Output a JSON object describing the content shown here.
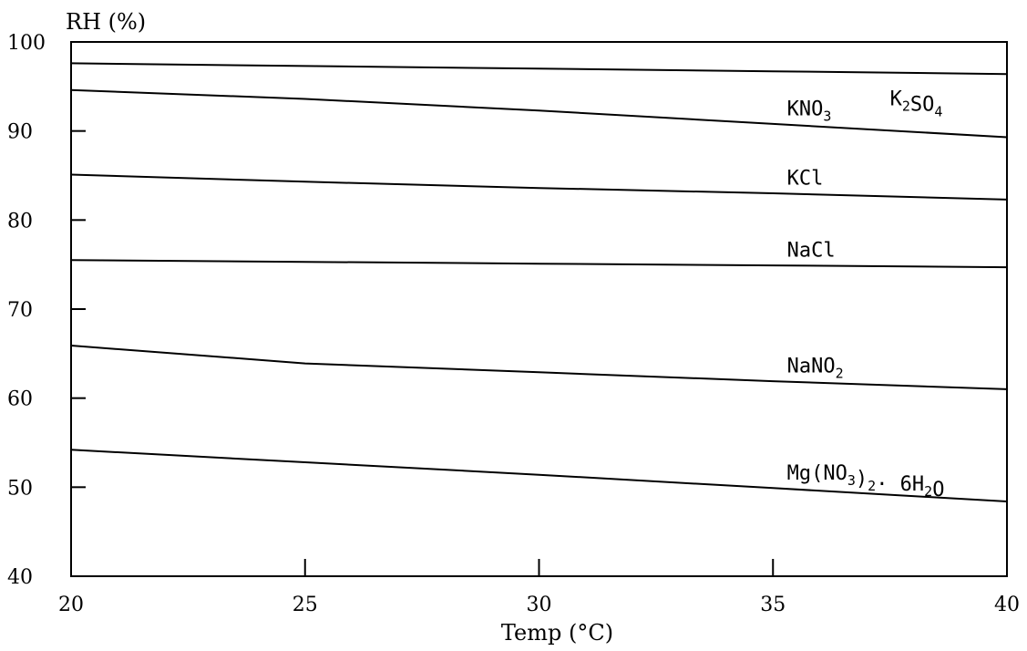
{
  "chart_data": {
    "type": "line",
    "title": "",
    "xlabel": "Temp (°C)",
    "ylabel": "RH (%)",
    "xlim": [
      20,
      40
    ],
    "ylim": [
      40,
      100
    ],
    "x_ticks": [
      20,
      25,
      30,
      35,
      40
    ],
    "y_ticks": [
      40,
      50,
      60,
      70,
      80,
      90,
      100
    ],
    "grid": false,
    "legend": "none",
    "series": [
      {
        "name": "K2SO4",
        "label_main": "K",
        "label_parts": [
          [
            "K",
            ""
          ],
          [
            "2",
            "sub"
          ],
          [
            "SO",
            ""
          ],
          [
            "4",
            "sub"
          ]
        ],
        "x": [
          20,
          25,
          30,
          35,
          40
        ],
        "y": [
          97.6,
          97.3,
          97.0,
          96.7,
          96.4
        ]
      },
      {
        "name": "KNO3",
        "label_parts": [
          [
            "KNO",
            ""
          ],
          [
            "3",
            "sub"
          ]
        ],
        "x": [
          20,
          25,
          30,
          35,
          40
        ],
        "y": [
          94.6,
          93.6,
          92.3,
          90.8,
          89.3
        ]
      },
      {
        "name": "KCl",
        "label_parts": [
          [
            "KCl",
            ""
          ]
        ],
        "x": [
          20,
          25,
          30,
          35,
          40
        ],
        "y": [
          85.1,
          84.3,
          83.6,
          83.0,
          82.3
        ]
      },
      {
        "name": "NaCl",
        "label_parts": [
          [
            "NaCl",
            ""
          ]
        ],
        "x": [
          20,
          25,
          30,
          35,
          40
        ],
        "y": [
          75.5,
          75.3,
          75.1,
          74.9,
          74.7
        ]
      },
      {
        "name": "NaNO2",
        "label_parts": [
          [
            "NaNO",
            ""
          ],
          [
            "2",
            "sub"
          ]
        ],
        "x": [
          20,
          25,
          30,
          35,
          40
        ],
        "y": [
          65.9,
          63.9,
          62.9,
          61.9,
          61.0
        ]
      },
      {
        "name": "Mg(NO3)2· 6H2O",
        "label_parts": [
          [
            "Mg(NO",
            ""
          ],
          [
            "3",
            "sub"
          ],
          [
            ")",
            ""
          ],
          [
            "2",
            "sub"
          ],
          [
            "· 6H",
            ""
          ],
          [
            "2",
            "sub"
          ],
          [
            "O",
            ""
          ]
        ],
        "x": [
          20,
          25,
          30,
          35,
          40
        ],
        "y": [
          54.2,
          52.8,
          51.4,
          49.9,
          48.4
        ]
      }
    ]
  }
}
